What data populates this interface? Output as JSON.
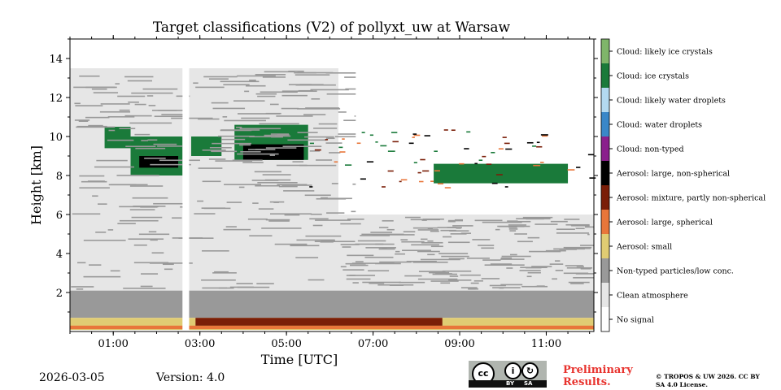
{
  "chart_data": {
    "type": "heatmap",
    "title": "Target classifications (V2) of pollyxt_uw at Warsaw",
    "xlabel": "Time [UTC]",
    "ylabel": "Height [km]",
    "x_range_hours": [
      0.0,
      12.1
    ],
    "ylim_km": [
      0.0,
      15.0
    ],
    "x_ticks": [
      {
        "value": 1,
        "label": "01:00"
      },
      {
        "value": 3,
        "label": "03:00"
      },
      {
        "value": 5,
        "label": "05:00"
      },
      {
        "value": 7,
        "label": "07:00"
      },
      {
        "value": 9,
        "label": "09:00"
      },
      {
        "value": 11,
        "label": "11:00"
      }
    ],
    "y_ticks": [
      {
        "value": 2,
        "label": "2"
      },
      {
        "value": 4,
        "label": "4"
      },
      {
        "value": 6,
        "label": "6"
      },
      {
        "value": 8,
        "label": "8"
      },
      {
        "value": 10,
        "label": "10"
      },
      {
        "value": 12,
        "label": "12"
      },
      {
        "value": 14,
        "label": "14"
      }
    ],
    "legend": [
      {
        "label": "Cloud: likely ice crystals",
        "color": "#7fb56a"
      },
      {
        "label": "Cloud: ice crystals",
        "color": "#1a7a3a"
      },
      {
        "label": "Cloud: likely water droplets",
        "color": "#b3d9f0"
      },
      {
        "label": "Cloud: water droplets",
        "color": "#3a87c8"
      },
      {
        "label": "Cloud: non-typed",
        "color": "#8a1f8c"
      },
      {
        "label": "Aerosol: large, non-spherical",
        "color": "#000000"
      },
      {
        "label": "Aerosol: mixture, partly non-spherical",
        "color": "#7a1e08"
      },
      {
        "label": "Aerosol: large, spherical",
        "color": "#e8763a"
      },
      {
        "label": "Aerosol: small",
        "color": "#e0cc73"
      },
      {
        "label": "Non-typed particles/low conc.",
        "color": "#999999"
      },
      {
        "label": "Clean atmosphere",
        "color": "#e6e6e6"
      },
      {
        "label": "No signal",
        "color": "#ffffff"
      }
    ],
    "regions": [
      {
        "cls": "Non-typed particles/low conc.",
        "t": [
          0.0,
          12.1
        ],
        "h": [
          0.7,
          2.1
        ]
      },
      {
        "cls": "Clean atmosphere",
        "t": [
          0.0,
          6.2
        ],
        "h": [
          2.1,
          13.5
        ]
      },
      {
        "cls": "Clean atmosphere",
        "t": [
          6.2,
          12.1
        ],
        "h": [
          2.1,
          6.0
        ]
      },
      {
        "cls": "Aerosol: small",
        "t": [
          0.0,
          12.1
        ],
        "h": [
          0.08,
          0.7
        ]
      },
      {
        "cls": "Aerosol: large, spherical",
        "t": [
          0.0,
          12.1
        ],
        "h": [
          0.12,
          0.3
        ]
      },
      {
        "cls": "Aerosol: mixture, partly non-spherical",
        "t": [
          2.9,
          8.6
        ],
        "h": [
          0.3,
          0.7
        ]
      },
      {
        "cls": "Cloud: ice crystals",
        "t": [
          0.8,
          1.4
        ],
        "h": [
          9.4,
          10.5
        ]
      },
      {
        "cls": "Cloud: ice crystals",
        "t": [
          1.4,
          2.6
        ],
        "h": [
          8.0,
          10.0
        ]
      },
      {
        "cls": "Aerosol: large, non-spherical",
        "t": [
          1.6,
          2.5
        ],
        "h": [
          8.4,
          9.0
        ]
      },
      {
        "cls": "Cloud: ice crystals",
        "t": [
          2.8,
          3.5
        ],
        "h": [
          9.0,
          10.0
        ]
      },
      {
        "cls": "Cloud: ice crystals",
        "t": [
          3.8,
          5.5
        ],
        "h": [
          8.8,
          10.6
        ]
      },
      {
        "cls": "Aerosol: large, non-spherical",
        "t": [
          4.0,
          5.4
        ],
        "h": [
          8.8,
          9.6
        ]
      },
      {
        "cls": "Cloud: ice crystals",
        "t": [
          8.4,
          11.5
        ],
        "h": [
          7.6,
          8.6
        ]
      },
      {
        "cls": "No signal",
        "t": [
          2.6,
          2.75
        ],
        "h": [
          0.0,
          15.0
        ]
      }
    ]
  },
  "footer": {
    "date": "2026-03-05",
    "version": "Version: 4.0",
    "preliminary": "Preliminary Results.",
    "copyright": "© TROPOS & UW 2026. CC BY SA 4.0 License.",
    "license_badge": {
      "cc": "cc",
      "by": "BY",
      "sa": "SA"
    }
  }
}
